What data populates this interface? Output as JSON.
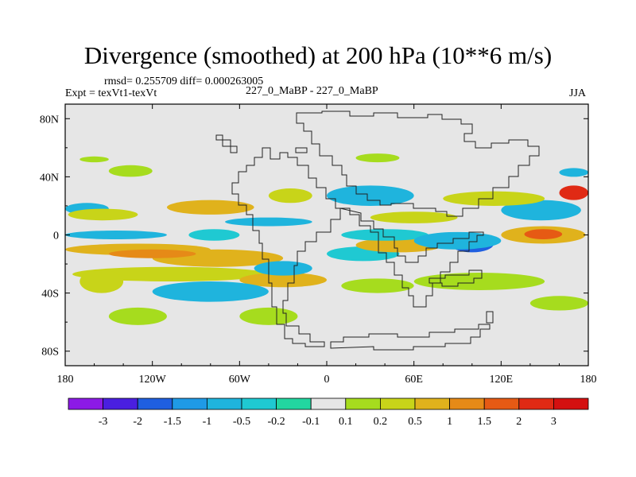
{
  "title": "Divergence (smoothed) at 200 hPa (10**6 m/s)",
  "stats_line": "rmsd= 0.255709 diff= 0.000263005",
  "experiment": "Expt = texVt1-texVt",
  "case_name": "227_0_MaBP - 227_0_MaBP",
  "season": "JJA",
  "chart_data": {
    "type": "heatmap",
    "title": "Divergence (smoothed) at 200 hPa (10**6 m/s)",
    "variable": "Divergence (smoothed)",
    "level": "200 hPa",
    "units": "10**6 m/s",
    "xlabel": "",
    "ylabel": "",
    "xlim": [
      -180,
      180
    ],
    "ylim": [
      -90,
      90
    ],
    "x_ticks": [
      {
        "value": -180,
        "label": "180"
      },
      {
        "value": -120,
        "label": "120W"
      },
      {
        "value": -60,
        "label": "60W"
      },
      {
        "value": 0,
        "label": "0"
      },
      {
        "value": 60,
        "label": "60E"
      },
      {
        "value": 120,
        "label": "120E"
      },
      {
        "value": 180,
        "label": "180"
      }
    ],
    "y_ticks": [
      {
        "value": 80,
        "label": "80N"
      },
      {
        "value": 40,
        "label": "40N"
      },
      {
        "value": 0,
        "label": "0"
      },
      {
        "value": -40,
        "label": "40S"
      },
      {
        "value": -80,
        "label": "80S"
      }
    ],
    "colorbar": {
      "boundaries": [
        -3,
        -2,
        -1.5,
        -1,
        -0.5,
        -0.2,
        -0.1,
        0.1,
        0.2,
        0.5,
        1,
        1.5,
        2,
        3
      ],
      "labels": [
        "-3",
        "-2",
        "-1.5",
        "-1",
        "-0.5",
        "-0.2",
        "-0.1",
        "0.1",
        "0.2",
        "0.5",
        "1",
        "1.5",
        "2",
        "3"
      ],
      "colors": [
        "#8c1ae6",
        "#4a1fe0",
        "#1f5fe0",
        "#1f9ae6",
        "#1fb4dd",
        "#1fc9d2",
        "#22d6a0",
        "#e6e6e6",
        "#a6dc1e",
        "#c8d419",
        "#e0b21c",
        "#e68a17",
        "#e65a14",
        "#e02a14",
        "#d41010"
      ]
    },
    "anomaly_bands": [
      {
        "lon": [
          -180,
          -80
        ],
        "lat": [
          -14,
          -6
        ],
        "class": 10
      },
      {
        "lon": [
          -120,
          -30
        ],
        "lat": [
          -22,
          -10
        ],
        "class": 10
      },
      {
        "lon": [
          -150,
          -90
        ],
        "lat": [
          -16,
          -10
        ],
        "class": 11
      },
      {
        "lon": [
          -175,
          -40
        ],
        "lat": [
          -32,
          -22
        ],
        "class": 9
      },
      {
        "lon": [
          -170,
          -140
        ],
        "lat": [
          -40,
          -24
        ],
        "class": 9
      },
      {
        "lon": [
          -60,
          0
        ],
        "lat": [
          -36,
          -26
        ],
        "class": 10
      },
      {
        "lon": [
          -120,
          -40
        ],
        "lat": [
          -46,
          -32
        ],
        "class": 4
      },
      {
        "lon": [
          -50,
          -10
        ],
        "lat": [
          -28,
          -18
        ],
        "class": 4
      },
      {
        "lon": [
          0,
          50
        ],
        "lat": [
          -18,
          -8
        ],
        "class": 5
      },
      {
        "lon": [
          20,
          80
        ],
        "lat": [
          -12,
          -2
        ],
        "class": 10
      },
      {
        "lon": [
          10,
          60
        ],
        "lat": [
          -40,
          -30
        ],
        "class": 8
      },
      {
        "lon": [
          60,
          150
        ],
        "lat": [
          -38,
          -26
        ],
        "class": 8
      },
      {
        "lon": [
          -150,
          -110
        ],
        "lat": [
          -62,
          -50
        ],
        "class": 8
      },
      {
        "lon": [
          -60,
          -20
        ],
        "lat": [
          -62,
          -50
        ],
        "class": 8
      },
      {
        "lon": [
          140,
          180
        ],
        "lat": [
          -52,
          -42
        ],
        "class": 8
      },
      {
        "lon": [
          120,
          178
        ],
        "lat": [
          -6,
          6
        ],
        "class": 10
      },
      {
        "lon": [
          136,
          162
        ],
        "lat": [
          -3,
          4
        ],
        "class": 12
      },
      {
        "lon": [
          -180,
          -150
        ],
        "lat": [
          14,
          22
        ],
        "class": 4
      },
      {
        "lon": [
          -178,
          -130
        ],
        "lat": [
          10,
          18
        ],
        "class": 9
      },
      {
        "lon": [
          -180,
          -110
        ],
        "lat": [
          -3,
          3
        ],
        "class": 4
      },
      {
        "lon": [
          -95,
          -60
        ],
        "lat": [
          -4,
          4
        ],
        "class": 5
      },
      {
        "lon": [
          -110,
          -50
        ],
        "lat": [
          14,
          24
        ],
        "class": 10
      },
      {
        "lon": [
          -70,
          -10
        ],
        "lat": [
          6,
          12
        ],
        "class": 4
      },
      {
        "lon": [
          10,
          70
        ],
        "lat": [
          -4,
          4
        ],
        "class": 5
      },
      {
        "lon": [
          85,
          115
        ],
        "lat": [
          -12,
          0
        ],
        "class": 2
      },
      {
        "lon": [
          60,
          120
        ],
        "lat": [
          -10,
          2
        ],
        "class": 4
      },
      {
        "lon": [
          120,
          175
        ],
        "lat": [
          10,
          24
        ],
        "class": 4
      },
      {
        "lon": [
          0,
          60
        ],
        "lat": [
          20,
          34
        ],
        "class": 4
      },
      {
        "lon": [
          80,
          150
        ],
        "lat": [
          20,
          30
        ],
        "class": 9
      },
      {
        "lon": [
          160,
          180
        ],
        "lat": [
          24,
          34
        ],
        "class": 13
      },
      {
        "lon": [
          30,
          90
        ],
        "lat": [
          8,
          16
        ],
        "class": 9
      },
      {
        "lon": [
          -40,
          -10
        ],
        "lat": [
          22,
          32
        ],
        "class": 9
      },
      {
        "lon": [
          -150,
          -120
        ],
        "lat": [
          40,
          48
        ],
        "class": 8
      },
      {
        "lon": [
          20,
          50
        ],
        "lat": [
          50,
          56
        ],
        "class": 8
      },
      {
        "lon": [
          160,
          180
        ],
        "lat": [
          40,
          46
        ],
        "class": 4
      },
      {
        "lon": [
          -170,
          -150
        ],
        "lat": [
          50,
          54
        ],
        "class": 8
      }
    ]
  }
}
